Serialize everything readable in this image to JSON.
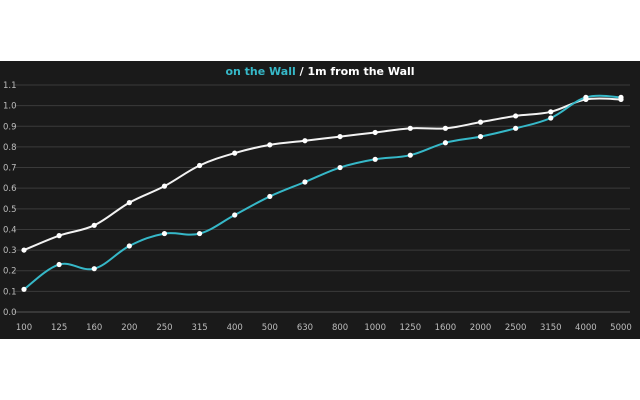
{
  "chart_data": {
    "type": "line",
    "title_parts": {
      "series_a": "on the Wall",
      "separator": " / ",
      "series_b": "1m from the Wall"
    },
    "categories": [
      "100",
      "125",
      "160",
      "200",
      "250",
      "315",
      "400",
      "500",
      "630",
      "800",
      "1000",
      "1250",
      "1600",
      "2000",
      "2500",
      "3150",
      "4000",
      "5000"
    ],
    "yticks": [
      "0.0",
      "0.1",
      "0.2",
      "0.3",
      "0.4",
      "0.5",
      "0.6",
      "0.7",
      "0.8",
      "0.9",
      "1.0",
      "1.1"
    ],
    "ylim": [
      0,
      1.1
    ],
    "grid": true,
    "series": [
      {
        "name": "on the Wall",
        "color": "#36b8c8",
        "values": [
          0.11,
          0.23,
          0.21,
          0.32,
          0.38,
          0.38,
          0.47,
          0.56,
          0.63,
          0.7,
          0.74,
          0.76,
          0.82,
          0.85,
          0.89,
          0.94,
          1.04,
          1.04
        ]
      },
      {
        "name": "1m from the Wall",
        "color": "#f2f2f2",
        "values": [
          0.3,
          0.37,
          0.42,
          0.53,
          0.61,
          0.71,
          0.77,
          0.81,
          0.83,
          0.85,
          0.87,
          0.89,
          0.89,
          0.92,
          0.95,
          0.97,
          1.03,
          1.03
        ]
      }
    ]
  }
}
